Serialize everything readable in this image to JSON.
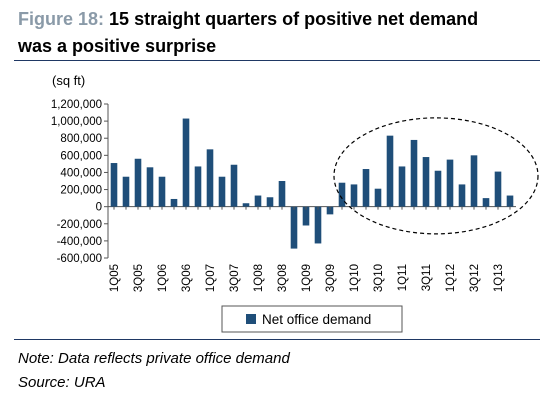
{
  "figure": {
    "label": "Figure 18:",
    "title_line1": "15 straight quarters of positive net demand",
    "title_line2": "was a positive surprise"
  },
  "notes": {
    "note": "Note: Data reflects private office demand",
    "source": "Source: URA"
  },
  "colors": {
    "bar": "#1f4e79",
    "title_label": "#8a9aa8",
    "rule": "#1f3864"
  },
  "chart_data": {
    "type": "bar",
    "ylabel": "(sq ft)",
    "ylim": [
      -600000,
      1200000
    ],
    "yticks": [
      -600000,
      -400000,
      -200000,
      0,
      200000,
      400000,
      600000,
      800000,
      1000000,
      1200000
    ],
    "ytick_labels": [
      "-600,000",
      "-400,000",
      "-200,000",
      "0",
      "200,000",
      "400,000",
      "600,000",
      "800,000",
      "1,000,000",
      "1,200,000"
    ],
    "categories": [
      "1Q05",
      "2Q05",
      "3Q05",
      "4Q05",
      "1Q06",
      "2Q06",
      "3Q06",
      "4Q06",
      "1Q07",
      "2Q07",
      "3Q07",
      "4Q07",
      "1Q08",
      "2Q08",
      "3Q08",
      "4Q08",
      "1Q09",
      "2Q09",
      "3Q09",
      "4Q09",
      "1Q10",
      "2Q10",
      "3Q10",
      "4Q10",
      "1Q11",
      "2Q11",
      "3Q11",
      "4Q11",
      "1Q12",
      "2Q12",
      "3Q12",
      "4Q12",
      "1Q13",
      "2Q13"
    ],
    "xtick_labels": [
      "1Q05",
      "",
      "3Q05",
      "",
      "1Q06",
      "",
      "3Q06",
      "",
      "1Q07",
      "",
      "3Q07",
      "",
      "1Q08",
      "",
      "3Q08",
      "",
      "1Q09",
      "",
      "3Q09",
      "",
      "1Q10",
      "",
      "3Q10",
      "",
      "1Q11",
      "",
      "3Q11",
      "",
      "1Q12",
      "",
      "3Q12",
      "",
      "1Q13",
      ""
    ],
    "series": [
      {
        "name": "Net office demand",
        "values": [
          510000,
          350000,
          560000,
          460000,
          350000,
          90000,
          1030000,
          470000,
          670000,
          350000,
          490000,
          40000,
          130000,
          110000,
          300000,
          -490000,
          -220000,
          -430000,
          -90000,
          280000,
          260000,
          440000,
          210000,
          830000,
          470000,
          780000,
          580000,
          420000,
          550000,
          260000,
          600000,
          100000,
          410000,
          130000
        ]
      }
    ],
    "legend": "bottom-center",
    "grid": false,
    "annotation": "dashed ellipse highlighting 1Q10 to 2Q13"
  }
}
